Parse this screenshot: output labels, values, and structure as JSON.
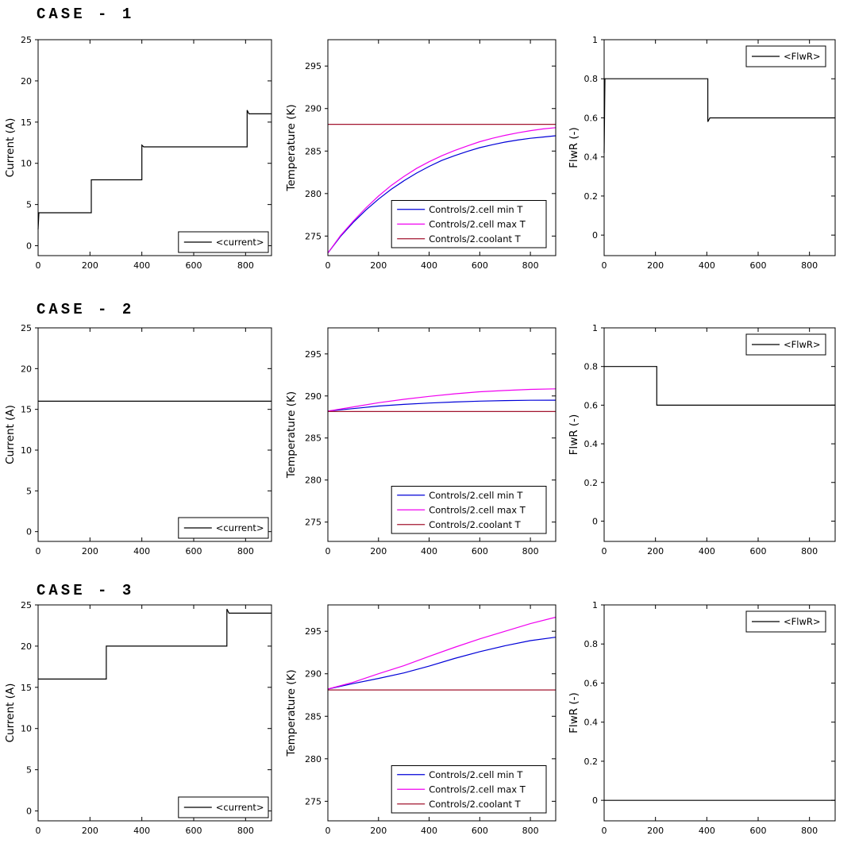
{
  "figure": {
    "rows": [
      {
        "title": "CASE - 1"
      },
      {
        "title": "CASE - 2"
      },
      {
        "title": "CASE - 3"
      }
    ]
  },
  "palette": {
    "axis": "#000000",
    "current": "#000000",
    "cell_min": "#0000D8",
    "cell_max": "#F000F0",
    "coolant": "#A2142F",
    "background": "#ffffff"
  },
  "chart_data": [
    {
      "type": "line",
      "case": "CASE - 1",
      "name": "case1-current",
      "ylabel": "Current (A)",
      "xlabel": "",
      "xlim": [
        0,
        900
      ],
      "ylim": [
        -1.2,
        25
      ],
      "xticks": [
        0,
        200,
        400,
        600,
        800
      ],
      "xtick_labels": [
        "0",
        "200",
        "400",
        "600",
        "800"
      ],
      "yticks": [
        0,
        5,
        10,
        15,
        20,
        25
      ],
      "ytick_labels": [
        "0",
        "5",
        "10",
        "15",
        "20",
        "25"
      ],
      "grid": false,
      "legend_position": "bottom-right",
      "series": [
        {
          "name": "<current>",
          "color": "#000000",
          "points": [
            [
              0,
              2
            ],
            [
              3,
              4
            ],
            [
              205,
              4
            ],
            [
              205,
              8
            ],
            [
              400,
              8
            ],
            [
              400,
              12.2
            ],
            [
              407,
              12
            ],
            [
              806,
              12
            ],
            [
              806,
              16.45
            ],
            [
              813,
              16
            ],
            [
              900,
              16
            ]
          ]
        }
      ]
    },
    {
      "type": "line",
      "case": "CASE - 1",
      "name": "case1-temperature",
      "ylabel": "Temperature (K)",
      "xlabel": "",
      "xlim": [
        0,
        900
      ],
      "ylim": [
        272.7,
        298.1
      ],
      "xticks": [
        0,
        200,
        400,
        600,
        800
      ],
      "xtick_labels": [
        "0",
        "200",
        "400",
        "600",
        "800"
      ],
      "yticks": [
        275,
        280,
        285,
        290,
        295
      ],
      "ytick_labels": [
        "275",
        "280",
        "285",
        "290",
        "295"
      ],
      "grid": false,
      "legend_position": "bottom-right",
      "series": [
        {
          "name": "Controls/2.cell min T",
          "color": "#0000D8",
          "points": [
            [
              0,
              273
            ],
            [
              50,
              274.95
            ],
            [
              100,
              276.6
            ],
            [
              150,
              278.05
            ],
            [
              200,
              279.35
            ],
            [
              250,
              280.5
            ],
            [
              300,
              281.5
            ],
            [
              350,
              282.4
            ],
            [
              400,
              283.2
            ],
            [
              450,
              283.9
            ],
            [
              500,
              284.45
            ],
            [
              550,
              284.95
            ],
            [
              600,
              285.4
            ],
            [
              650,
              285.75
            ],
            [
              700,
              286.05
            ],
            [
              750,
              286.3
            ],
            [
              800,
              286.5
            ],
            [
              850,
              286.65
            ],
            [
              900,
              286.8
            ]
          ]
        },
        {
          "name": "Controls/2.cell max T",
          "color": "#F000F0",
          "points": [
            [
              0,
              273
            ],
            [
              50,
              275.05
            ],
            [
              100,
              276.75
            ],
            [
              150,
              278.3
            ],
            [
              200,
              279.7
            ],
            [
              250,
              280.95
            ],
            [
              300,
              282.0
            ],
            [
              350,
              282.95
            ],
            [
              400,
              283.75
            ],
            [
              450,
              284.45
            ],
            [
              500,
              285.05
            ],
            [
              550,
              285.6
            ],
            [
              600,
              286.1
            ],
            [
              650,
              286.5
            ],
            [
              700,
              286.85
            ],
            [
              750,
              287.15
            ],
            [
              800,
              287.4
            ],
            [
              850,
              287.6
            ],
            [
              900,
              287.75
            ]
          ]
        },
        {
          "name": "Controls/2.coolant T",
          "color": "#A2142F",
          "points": [
            [
              0,
              288.15
            ],
            [
              900,
              288.15
            ]
          ]
        }
      ]
    },
    {
      "type": "line",
      "case": "CASE - 1",
      "name": "case1-flwr",
      "ylabel": "FlwR (-)",
      "xlabel": "",
      "xlim": [
        0,
        900
      ],
      "ylim": [
        -0.105,
        1
      ],
      "xticks": [
        0,
        200,
        400,
        600,
        800
      ],
      "xtick_labels": [
        "0",
        "200",
        "400",
        "600",
        "800"
      ],
      "yticks": [
        0,
        0.2,
        0.4,
        0.6,
        0.8,
        1
      ],
      "ytick_labels": [
        "0",
        "0.2",
        "0.4",
        "0.6",
        "0.8",
        "1"
      ],
      "grid": false,
      "legend_position": "top-right",
      "series": [
        {
          "name": "<FlwR>",
          "color": "#000000",
          "points": [
            [
              0,
              0.42
            ],
            [
              3,
              0.8
            ],
            [
              404,
              0.8
            ],
            [
              404,
              0.58
            ],
            [
              412,
              0.6
            ],
            [
              900,
              0.6
            ]
          ]
        }
      ]
    },
    {
      "type": "line",
      "case": "CASE - 2",
      "name": "case2-current",
      "ylabel": "Current (A)",
      "xlabel": "",
      "xlim": [
        0,
        900
      ],
      "ylim": [
        -1.2,
        25
      ],
      "xticks": [
        0,
        200,
        400,
        600,
        800
      ],
      "xtick_labels": [
        "0",
        "200",
        "400",
        "600",
        "800"
      ],
      "yticks": [
        0,
        5,
        10,
        15,
        20,
        25
      ],
      "ytick_labels": [
        "0",
        "5",
        "10",
        "15",
        "20",
        "25"
      ],
      "grid": false,
      "legend_position": "bottom-right",
      "series": [
        {
          "name": "<current>",
          "color": "#000000",
          "points": [
            [
              0,
              16
            ],
            [
              900,
              16
            ]
          ]
        }
      ]
    },
    {
      "type": "line",
      "case": "CASE - 2",
      "name": "case2-temperature",
      "ylabel": "Temperature (K)",
      "xlabel": "",
      "xlim": [
        0,
        900
      ],
      "ylim": [
        272.7,
        298.1
      ],
      "xticks": [
        0,
        200,
        400,
        600,
        800
      ],
      "xtick_labels": [
        "0",
        "200",
        "400",
        "600",
        "800"
      ],
      "yticks": [
        275,
        280,
        285,
        290,
        295
      ],
      "ytick_labels": [
        "275",
        "280",
        "285",
        "290",
        "295"
      ],
      "grid": false,
      "legend_position": "bottom-right",
      "series": [
        {
          "name": "Controls/2.cell min T",
          "color": "#0000D8",
          "points": [
            [
              0,
              288.2
            ],
            [
              100,
              288.5
            ],
            [
              200,
              288.8
            ],
            [
              300,
              289.0
            ],
            [
              400,
              289.16
            ],
            [
              500,
              289.28
            ],
            [
              600,
              289.38
            ],
            [
              700,
              289.45
            ],
            [
              800,
              289.49
            ],
            [
              900,
              289.5
            ]
          ]
        },
        {
          "name": "Controls/2.cell max T",
          "color": "#F000F0",
          "points": [
            [
              0,
              288.2
            ],
            [
              100,
              288.7
            ],
            [
              200,
              289.2
            ],
            [
              300,
              289.6
            ],
            [
              400,
              289.95
            ],
            [
              500,
              290.25
            ],
            [
              600,
              290.5
            ],
            [
              700,
              290.65
            ],
            [
              800,
              290.78
            ],
            [
              900,
              290.85
            ]
          ]
        },
        {
          "name": "Controls/2.coolant T",
          "color": "#A2142F",
          "points": [
            [
              0,
              288.15
            ],
            [
              900,
              288.15
            ]
          ]
        }
      ]
    },
    {
      "type": "line",
      "case": "CASE - 2",
      "name": "case2-flwr",
      "ylabel": "FlwR (-)",
      "xlabel": "",
      "xlim": [
        0,
        900
      ],
      "ylim": [
        -0.105,
        1
      ],
      "xticks": [
        0,
        200,
        400,
        600,
        800
      ],
      "xtick_labels": [
        "0",
        "200",
        "400",
        "600",
        "800"
      ],
      "yticks": [
        0,
        0.2,
        0.4,
        0.6,
        0.8,
        1
      ],
      "ytick_labels": [
        "0",
        "0.2",
        "0.4",
        "0.6",
        "0.8",
        "1"
      ],
      "grid": false,
      "legend_position": "top-right",
      "series": [
        {
          "name": "<FlwR>",
          "color": "#000000",
          "points": [
            [
              0,
              0.8
            ],
            [
              205,
              0.8
            ],
            [
              205,
              0.6
            ],
            [
              900,
              0.6
            ]
          ]
        }
      ]
    },
    {
      "type": "line",
      "case": "CASE - 3",
      "name": "case3-current",
      "ylabel": "Current (A)",
      "xlabel": "",
      "xlim": [
        0,
        900
      ],
      "ylim": [
        -1.2,
        25
      ],
      "xticks": [
        0,
        200,
        400,
        600,
        800
      ],
      "xtick_labels": [
        "0",
        "200",
        "400",
        "600",
        "800"
      ],
      "yticks": [
        0,
        5,
        10,
        15,
        20,
        25
      ],
      "ytick_labels": [
        "0",
        "5",
        "10",
        "15",
        "20",
        "25"
      ],
      "grid": false,
      "legend_position": "bottom-right",
      "series": [
        {
          "name": "<current>",
          "color": "#000000",
          "points": [
            [
              0,
              16
            ],
            [
              263,
              16
            ],
            [
              263,
              20
            ],
            [
              728,
              20
            ],
            [
              728,
              24.5
            ],
            [
              736,
              24
            ],
            [
              900,
              24
            ]
          ]
        }
      ]
    },
    {
      "type": "line",
      "case": "CASE - 3",
      "name": "case3-temperature",
      "ylabel": "Temperature (K)",
      "xlabel": "",
      "xlim": [
        0,
        900
      ],
      "ylim": [
        272.7,
        298.1
      ],
      "xticks": [
        0,
        200,
        400,
        600,
        800
      ],
      "xtick_labels": [
        "0",
        "200",
        "400",
        "600",
        "800"
      ],
      "yticks": [
        275,
        280,
        285,
        290,
        295
      ],
      "ytick_labels": [
        "275",
        "280",
        "285",
        "290",
        "295"
      ],
      "grid": false,
      "legend_position": "bottom-right",
      "series": [
        {
          "name": "Controls/2.cell min T",
          "color": "#0000D8",
          "points": [
            [
              0,
              288.2
            ],
            [
              100,
              288.85
            ],
            [
              200,
              289.45
            ],
            [
              300,
              290.1
            ],
            [
              400,
              290.9
            ],
            [
              500,
              291.8
            ],
            [
              600,
              292.6
            ],
            [
              700,
              293.3
            ],
            [
              800,
              293.9
            ],
            [
              900,
              294.3
            ]
          ]
        },
        {
          "name": "Controls/2.cell max T",
          "color": "#F000F0",
          "points": [
            [
              0,
              288.2
            ],
            [
              100,
              289.0
            ],
            [
              200,
              290.0
            ],
            [
              300,
              290.95
            ],
            [
              400,
              292.05
            ],
            [
              500,
              293.1
            ],
            [
              600,
              294.1
            ],
            [
              700,
              295.0
            ],
            [
              800,
              295.9
            ],
            [
              900,
              296.65
            ]
          ]
        },
        {
          "name": "Controls/2.coolant T",
          "color": "#A2142F",
          "points": [
            [
              0,
              288.1
            ],
            [
              900,
              288.1
            ]
          ]
        }
      ]
    },
    {
      "type": "line",
      "case": "CASE - 3",
      "name": "case3-flwr",
      "ylabel": "FlwR (-)",
      "xlabel": "",
      "xlim": [
        0,
        900
      ],
      "ylim": [
        -0.105,
        1
      ],
      "xticks": [
        0,
        200,
        400,
        600,
        800
      ],
      "xtick_labels": [
        "0",
        "200",
        "400",
        "600",
        "800"
      ],
      "yticks": [
        0,
        0.2,
        0.4,
        0.6,
        0.8,
        1
      ],
      "ytick_labels": [
        "0",
        "0.2",
        "0.4",
        "0.6",
        "0.8",
        "1"
      ],
      "grid": false,
      "legend_position": "top-right",
      "series": [
        {
          "name": "<FlwR>",
          "color": "#000000",
          "points": [
            [
              0,
              0
            ],
            [
              900,
              0
            ]
          ]
        }
      ]
    }
  ]
}
